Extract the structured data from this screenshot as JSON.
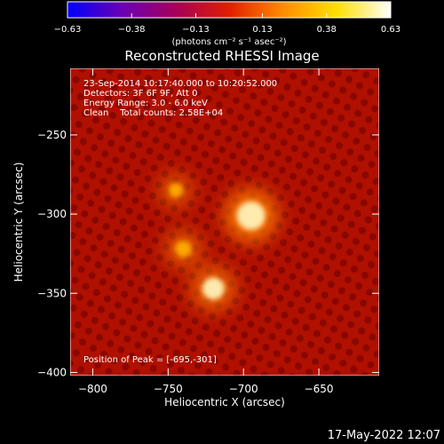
{
  "chart_data": {
    "type": "heatmap",
    "title": "Reconstructed RHESSI Image",
    "xlabel": "Heliocentric X (arcsec)",
    "ylabel": "Heliocentric Y (arcsec)",
    "xlim": [
      -815,
      -610
    ],
    "ylim": [
      -402,
      -208
    ],
    "x_ticks": [
      -800,
      -750,
      -700,
      -650
    ],
    "y_ticks": [
      -250,
      -300,
      -350,
      -400
    ],
    "x_tick_labels": [
      "−800",
      "−750",
      "−700",
      "−650"
    ],
    "y_tick_labels": [
      "−250",
      "−300",
      "−350",
      "−400"
    ],
    "colorbar": {
      "range": [
        -0.63,
        0.63
      ],
      "ticks": [
        -0.63,
        -0.38,
        -0.13,
        0.13,
        0.38,
        0.63
      ],
      "tick_labels": [
        "−0.63",
        "−0.38",
        "−0.13",
        "0.13",
        "0.38",
        "0.63"
      ],
      "unit_label": "(photons cm⁻² s⁻¹ asec⁻²)",
      "colors": [
        "#0000ff",
        "#6a00b4",
        "#a6005a",
        "#e01e00",
        "#ff8c00",
        "#ffe000",
        "#ffffff"
      ]
    },
    "annotations": [
      "23-Sep-2014 10:17:40.000 to 10:20:52.000",
      "Detectors: 3F 6F 9F, Att 0",
      "Energy Range: 3.0 - 6.0 keV",
      "Clean    Total counts: 2.58E+04"
    ],
    "peak_label": "Position of Peak = [-695,-301]",
    "sources": [
      {
        "x": -695,
        "y": -301,
        "peak": 1.0
      },
      {
        "x": -720,
        "y": -347,
        "peak": 0.7
      },
      {
        "x": -740,
        "y": -322,
        "peak": 0.45
      },
      {
        "x": -745,
        "y": -285,
        "peak": 0.35
      }
    ]
  },
  "footer": {
    "date": "17-May-2022 12:07"
  }
}
